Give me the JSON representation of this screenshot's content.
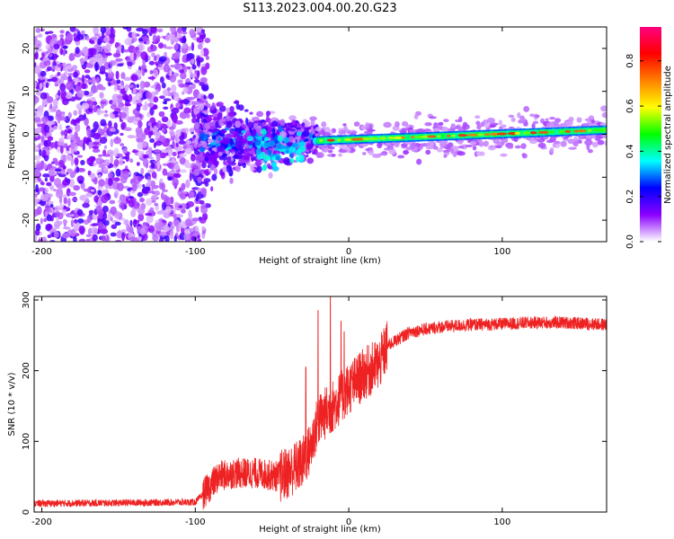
{
  "title": "S113.2023.004.00.20.G23",
  "chart_data": [
    {
      "type": "heatmap",
      "name": "spectrogram",
      "xlabel": "Height of straight line (km)",
      "ylabel": "Frequency (Hz)",
      "xlim": [
        -205,
        168
      ],
      "ylim": [
        -25,
        25
      ],
      "xticks": [
        -200,
        -100,
        0,
        100
      ],
      "xtick_labels": [
        "-200",
        "-100",
        "0",
        "100"
      ],
      "yticks": [
        -20,
        -10,
        0,
        10,
        20
      ],
      "ytick_labels": [
        "-20",
        "-10",
        "0",
        "10",
        "20"
      ],
      "colorbar": {
        "label": "Normalized spectral amplitude",
        "range": [
          0.0,
          0.95
        ],
        "ticks": [
          0.0,
          0.2,
          0.4,
          0.6,
          0.8
        ],
        "tick_labels": [
          "0.0",
          "0.2",
          "0.4",
          "0.6",
          "0.8"
        ],
        "colors": [
          "#ffffff",
          "#8a00ff",
          "#0000ff",
          "#00ffff",
          "#00ff00",
          "#ffff00",
          "#ff8000",
          "#ff0000",
          "#ff0080"
        ]
      },
      "regions": [
        {
          "name": "noise",
          "x_range": [
            -205,
            -100
          ],
          "freq_spread": [
            -25,
            25
          ],
          "amplitude": 0.1
        },
        {
          "name": "onset",
          "x_range": [
            -100,
            -20
          ],
          "freq_spread": [
            -10,
            8
          ],
          "amplitude": 0.3
        },
        {
          "name": "tone",
          "x_range": [
            -20,
            168
          ],
          "frequency_start": -1.5,
          "frequency_end": 1.0,
          "amplitude": 0.6
        }
      ]
    },
    {
      "type": "line",
      "name": "snr",
      "xlabel": "Height of straight line (km)",
      "ylabel": "SNR (10 * v/v)",
      "xlim": [
        -205,
        168
      ],
      "ylim": [
        0,
        305
      ],
      "xticks": [
        -200,
        -100,
        0,
        100
      ],
      "xtick_labels": [
        "-200",
        "-100",
        "0",
        "100"
      ],
      "yticks": [
        0,
        100,
        200,
        300
      ],
      "ytick_labels": [
        "0",
        "100",
        "200",
        "300"
      ],
      "color": "#ee2222",
      "profile": {
        "x": [
          -205,
          -100,
          -95,
          -85,
          -75,
          -60,
          -45,
          -40,
          -30,
          -25,
          -20,
          -10,
          0,
          10,
          20,
          25,
          40,
          60,
          80,
          100,
          120,
          140,
          168
        ],
        "y": [
          12,
          14,
          25,
          50,
          55,
          55,
          50,
          55,
          70,
          90,
          130,
          150,
          175,
          195,
          210,
          235,
          255,
          262,
          265,
          266,
          268,
          268,
          265
        ]
      },
      "spikes": [
        {
          "x": -28,
          "y": 205
        },
        {
          "x": -20,
          "y": 285
        },
        {
          "x": -12,
          "y": 305
        },
        {
          "x": -5,
          "y": 270
        },
        {
          "x": -3,
          "y": 255
        }
      ]
    }
  ]
}
